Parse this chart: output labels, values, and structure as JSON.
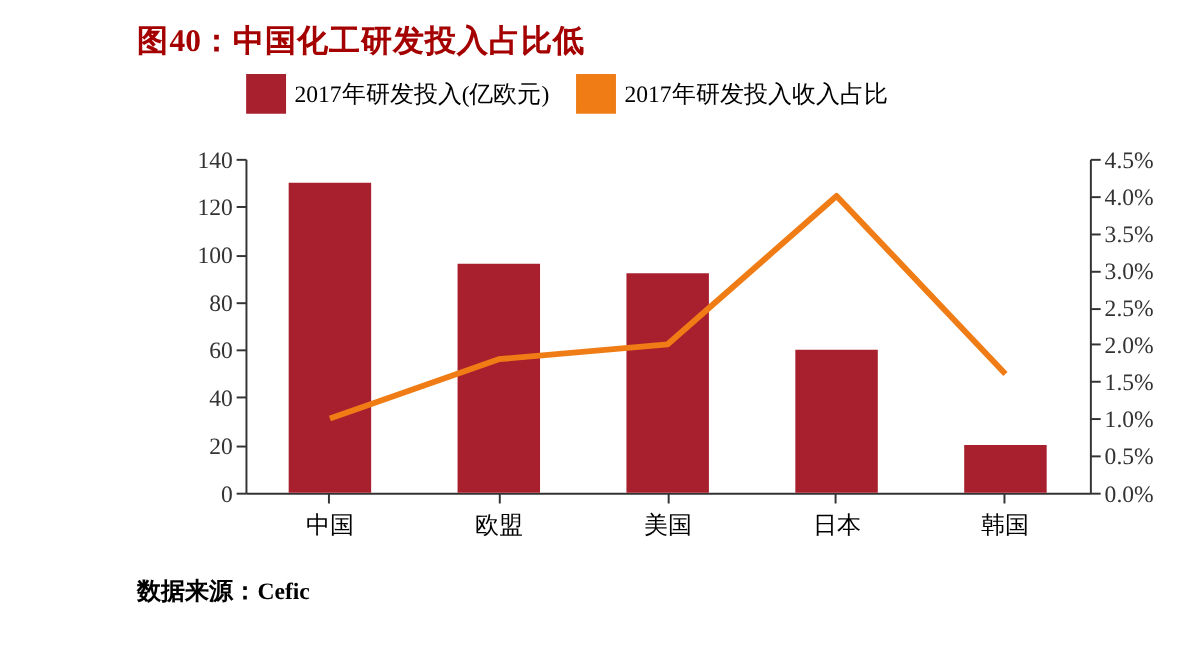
{
  "chart_data": {
    "type": "bar",
    "title": "图40：中国化工研发投入占比低",
    "categories": [
      "中国",
      "欧盟",
      "美国",
      "日本",
      "韩国"
    ],
    "series": [
      {
        "name": "2017年研发投入(亿欧元)",
        "color": "#a8202e",
        "values": [
          130,
          96,
          92,
          60,
          20
        ]
      },
      {
        "name": "2017年研发投入收入占比",
        "color": "#f07c16",
        "type": "line",
        "axis": "y2",
        "values": [
          1.0,
          1.8,
          2.0,
          4.0,
          1.6
        ]
      }
    ],
    "ylim": [
      0,
      140
    ],
    "yticks": [
      0,
      20,
      40,
      60,
      80,
      100,
      120,
      140
    ],
    "y2lim": [
      0,
      4.5
    ],
    "y2ticks": [
      {
        "value": 0,
        "label": "0.0%"
      },
      {
        "value": 0.5,
        "label": "0.5%"
      },
      {
        "value": 1,
        "label": "1.0%"
      },
      {
        "value": 1.5,
        "label": "1.5%"
      },
      {
        "value": 2,
        "label": "2.0%"
      },
      {
        "value": 2.5,
        "label": "2.5%"
      },
      {
        "value": 3,
        "label": "3.0%"
      },
      {
        "value": 3.5,
        "label": "3.5%"
      },
      {
        "value": 4,
        "label": "4.0%"
      },
      {
        "value": 4.5,
        "label": "4.5%"
      }
    ],
    "grid": false,
    "legend": "top",
    "annotations": [
      "数据来源：Cefic"
    ]
  }
}
